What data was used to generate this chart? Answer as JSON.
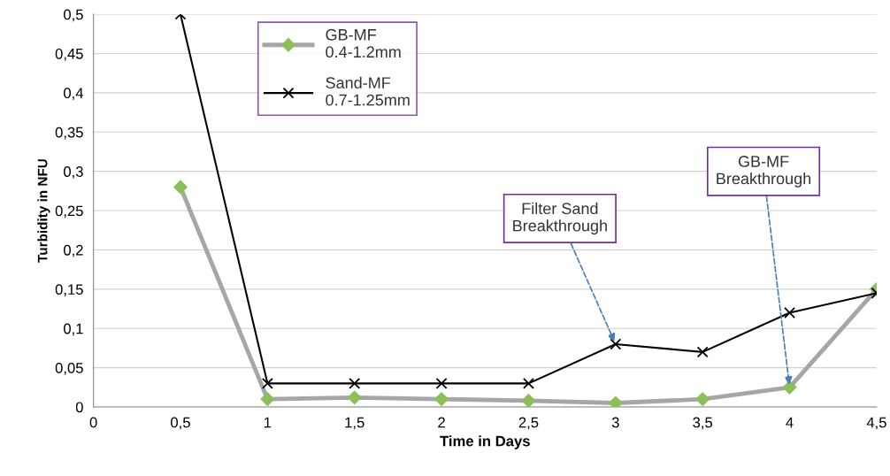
{
  "chart_data": {
    "type": "line",
    "xlabel": "Time in Days",
    "ylabel": "Turbidity in NFU",
    "x": [
      0.5,
      1,
      1.5,
      2,
      2.5,
      3,
      3.5,
      4,
      4.5
    ],
    "series": [
      {
        "name": "GB-MF\n0.4-1.2mm",
        "color": "#a6a6a6",
        "colors": [
          "#8cbf5a",
          "#8cbf5a",
          "#8cbf5a",
          "#8cbf5a",
          "#8cbf5a",
          "#8cbf5a",
          "#8cbf5a",
          "#8cbf5a",
          "#8cbf5a"
        ],
        "marker": "diamond",
        "values": [
          0.28,
          0.01,
          0.012,
          0.01,
          0.008,
          0.005,
          0.01,
          0.025,
          0.15
        ]
      },
      {
        "name": "Sand-MF\n0.7-1.25mm",
        "color": "#000000",
        "marker": "cross",
        "values": [
          0.5,
          0.03,
          0.03,
          0.03,
          0.03,
          0.08,
          0.07,
          0.12,
          0.145
        ]
      }
    ],
    "xlim": [
      0,
      4.5
    ],
    "ylim": [
      0,
      0.5
    ],
    "xticks": [
      0,
      {
        "value": 0.5,
        "label": "0,5"
      },
      1,
      {
        "value": 1.5,
        "label": "1,5"
      },
      2,
      {
        "value": 2.5,
        "label": "2,5"
      },
      3,
      {
        "value": 3.5,
        "label": "3,5"
      },
      4,
      {
        "value": 4.5,
        "label": "4,5"
      }
    ],
    "yticks": [
      0,
      {
        "value": 0.05,
        "label": "0,05"
      },
      {
        "value": 0.1,
        "label": "0,1"
      },
      {
        "value": 0.15,
        "label": "0,15"
      },
      {
        "value": 0.2,
        "label": "0,2"
      },
      {
        "value": 0.25,
        "label": "0,25"
      },
      {
        "value": 0.3,
        "label": "0,3"
      },
      {
        "value": 0.35,
        "label": "0,35"
      },
      {
        "value": 0.4,
        "label": "0,4"
      },
      {
        "value": 0.45,
        "label": "0,45"
      },
      {
        "value": 0.5,
        "label": "0,5"
      }
    ],
    "annotations": [
      {
        "text": "Filter Sand\nBreakthrough",
        "x": 3,
        "y": 0.08
      },
      {
        "text": "GB-MF\nBreakthrough",
        "x": 4,
        "y": 0.025
      }
    ],
    "grid": "y",
    "legend": "top left",
    "line_style": "solid"
  }
}
